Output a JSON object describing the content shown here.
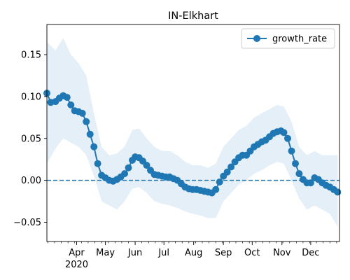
{
  "chart_data": {
    "type": "line",
    "title": "IN-Elkhart",
    "xlabel": "",
    "ylabel": "",
    "x_range": [
      "2020-03-01",
      "2020-12-31"
    ],
    "ylim": [
      -0.073,
      0.186
    ],
    "x_ticks": [
      {
        "date": "2020-04-01",
        "label": "Apr"
      },
      {
        "date": "2020-05-01",
        "label": "May"
      },
      {
        "date": "2020-06-01",
        "label": "Jun"
      },
      {
        "date": "2020-07-01",
        "label": "Jul"
      },
      {
        "date": "2020-08-01",
        "label": "Aug"
      },
      {
        "date": "2020-09-01",
        "label": "Sep"
      },
      {
        "date": "2020-10-01",
        "label": "Oct"
      },
      {
        "date": "2020-11-01",
        "label": "Nov"
      },
      {
        "date": "2020-12-01",
        "label": "Dec"
      }
    ],
    "x_year_label": "2020",
    "y_ticks": [
      -0.05,
      0.0,
      0.05,
      0.1,
      0.15
    ],
    "y_tick_labels": [
      "−0.05",
      "0.00",
      "0.05",
      "0.10",
      "0.15"
    ],
    "legend": {
      "position": "upper right",
      "entries": [
        "growth_rate"
      ]
    },
    "reference_line": {
      "y": 0.0,
      "style": "dashed"
    },
    "colors": {
      "series": "#1f77b4",
      "band": "#c6dbef"
    },
    "series": [
      {
        "name": "growth_rate",
        "points": [
          [
            "2020-03-01",
            0.104
          ],
          [
            "2020-03-05",
            0.093
          ],
          [
            "2020-03-10",
            0.094
          ],
          [
            "2020-03-14",
            0.098
          ],
          [
            "2020-03-18",
            0.101
          ],
          [
            "2020-03-22",
            0.099
          ],
          [
            "2020-03-26",
            0.09
          ],
          [
            "2020-03-30",
            0.083
          ],
          [
            "2020-04-03",
            0.082
          ],
          [
            "2020-04-07",
            0.08
          ],
          [
            "2020-04-11",
            0.07
          ],
          [
            "2020-04-15",
            0.055
          ],
          [
            "2020-04-19",
            0.04
          ],
          [
            "2020-04-23",
            0.02
          ],
          [
            "2020-04-27",
            0.006
          ],
          [
            "2020-05-01",
            0.003
          ],
          [
            "2020-05-05",
            0.0
          ],
          [
            "2020-05-09",
            -0.001
          ],
          [
            "2020-05-13",
            0.001
          ],
          [
            "2020-05-17",
            0.004
          ],
          [
            "2020-05-21",
            0.008
          ],
          [
            "2020-05-25",
            0.015
          ],
          [
            "2020-05-29",
            0.024
          ],
          [
            "2020-06-01",
            0.028
          ],
          [
            "2020-06-05",
            0.027
          ],
          [
            "2020-06-09",
            0.023
          ],
          [
            "2020-06-13",
            0.018
          ],
          [
            "2020-06-17",
            0.012
          ],
          [
            "2020-06-21",
            0.007
          ],
          [
            "2020-06-25",
            0.006
          ],
          [
            "2020-06-29",
            0.005
          ],
          [
            "2020-07-03",
            0.004
          ],
          [
            "2020-07-07",
            0.004
          ],
          [
            "2020-07-11",
            0.002
          ],
          [
            "2020-07-15",
            0.0
          ],
          [
            "2020-07-19",
            -0.004
          ],
          [
            "2020-07-23",
            -0.008
          ],
          [
            "2020-07-27",
            -0.01
          ],
          [
            "2020-07-31",
            -0.011
          ],
          [
            "2020-08-04",
            -0.011
          ],
          [
            "2020-08-08",
            -0.012
          ],
          [
            "2020-08-12",
            -0.013
          ],
          [
            "2020-08-16",
            -0.014
          ],
          [
            "2020-08-20",
            -0.015
          ],
          [
            "2020-08-24",
            -0.011
          ],
          [
            "2020-08-28",
            -0.002
          ],
          [
            "2020-09-01",
            0.005
          ],
          [
            "2020-09-05",
            0.01
          ],
          [
            "2020-09-09",
            0.016
          ],
          [
            "2020-09-13",
            0.022
          ],
          [
            "2020-09-17",
            0.027
          ],
          [
            "2020-09-21",
            0.03
          ],
          [
            "2020-09-25",
            0.03
          ],
          [
            "2020-09-29",
            0.035
          ],
          [
            "2020-10-03",
            0.04
          ],
          [
            "2020-10-07",
            0.043
          ],
          [
            "2020-10-11",
            0.046
          ],
          [
            "2020-10-15",
            0.048
          ],
          [
            "2020-10-19",
            0.052
          ],
          [
            "2020-10-23",
            0.056
          ],
          [
            "2020-10-27",
            0.058
          ],
          [
            "2020-10-31",
            0.059
          ],
          [
            "2020-11-03",
            0.057
          ],
          [
            "2020-11-07",
            0.05
          ],
          [
            "2020-11-11",
            0.035
          ],
          [
            "2020-11-15",
            0.02
          ],
          [
            "2020-11-19",
            0.008
          ],
          [
            "2020-11-23",
            0.001
          ],
          [
            "2020-11-27",
            -0.003
          ],
          [
            "2020-12-01",
            -0.003
          ],
          [
            "2020-12-05",
            0.003
          ],
          [
            "2020-12-09",
            0.001
          ],
          [
            "2020-12-13",
            -0.003
          ],
          [
            "2020-12-17",
            -0.006
          ],
          [
            "2020-12-21",
            -0.008
          ],
          [
            "2020-12-25",
            -0.011
          ],
          [
            "2020-12-29",
            -0.014
          ]
        ],
        "band": [
          [
            "2020-03-01",
            0.02,
            0.165
          ],
          [
            "2020-03-10",
            0.038,
            0.155
          ],
          [
            "2020-03-18",
            0.05,
            0.17
          ],
          [
            "2020-03-26",
            0.045,
            0.15
          ],
          [
            "2020-04-03",
            0.04,
            0.14
          ],
          [
            "2020-04-11",
            0.03,
            0.125
          ],
          [
            "2020-04-19",
            0.005,
            0.08
          ],
          [
            "2020-04-27",
            -0.025,
            0.04
          ],
          [
            "2020-05-05",
            -0.03,
            0.03
          ],
          [
            "2020-05-13",
            -0.035,
            0.032
          ],
          [
            "2020-05-21",
            -0.025,
            0.04
          ],
          [
            "2020-05-29",
            -0.01,
            0.06
          ],
          [
            "2020-06-05",
            -0.008,
            0.062
          ],
          [
            "2020-06-13",
            -0.015,
            0.05
          ],
          [
            "2020-06-21",
            -0.025,
            0.04
          ],
          [
            "2020-06-29",
            -0.028,
            0.035
          ],
          [
            "2020-07-07",
            -0.03,
            0.035
          ],
          [
            "2020-07-15",
            -0.033,
            0.03
          ],
          [
            "2020-07-23",
            -0.037,
            0.022
          ],
          [
            "2020-07-31",
            -0.04,
            0.018
          ],
          [
            "2020-08-08",
            -0.042,
            0.018
          ],
          [
            "2020-08-16",
            -0.045,
            0.015
          ],
          [
            "2020-08-24",
            -0.045,
            0.02
          ],
          [
            "2020-09-01",
            -0.025,
            0.04
          ],
          [
            "2020-09-09",
            -0.015,
            0.05
          ],
          [
            "2020-09-17",
            -0.005,
            0.06
          ],
          [
            "2020-09-25",
            0.0,
            0.065
          ],
          [
            "2020-10-03",
            0.008,
            0.075
          ],
          [
            "2020-10-11",
            0.012,
            0.08
          ],
          [
            "2020-10-19",
            0.018,
            0.085
          ],
          [
            "2020-10-27",
            0.022,
            0.09
          ],
          [
            "2020-11-03",
            0.02,
            0.088
          ],
          [
            "2020-11-11",
            0.0,
            0.07
          ],
          [
            "2020-11-19",
            -0.022,
            0.04
          ],
          [
            "2020-11-27",
            -0.035,
            0.03
          ],
          [
            "2020-12-05",
            -0.03,
            0.035
          ],
          [
            "2020-12-13",
            -0.035,
            0.03
          ],
          [
            "2020-12-21",
            -0.04,
            0.03
          ],
          [
            "2020-12-29",
            -0.055,
            0.03
          ]
        ]
      }
    ]
  }
}
